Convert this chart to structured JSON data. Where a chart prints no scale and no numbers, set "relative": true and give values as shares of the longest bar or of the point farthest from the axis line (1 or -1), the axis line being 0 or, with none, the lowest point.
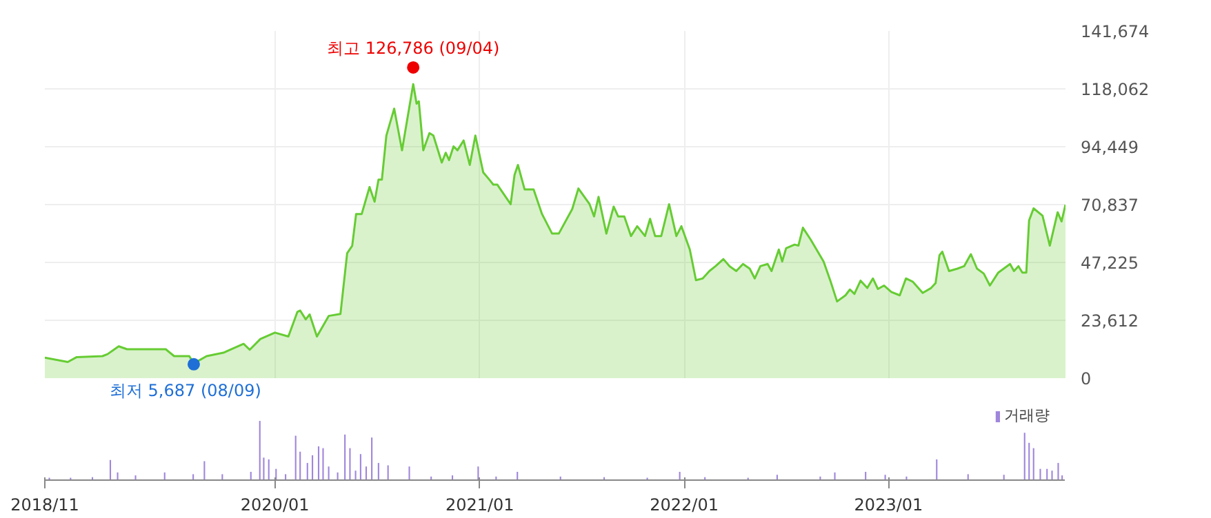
{
  "chart_data": [
    {
      "type": "area",
      "tick_labels": "y",
      "grid": true,
      "xlim": [
        "2018-11-16",
        "2023-11-13"
      ],
      "xticks": [
        {
          "value": "2018-11-16",
          "label": null
        },
        {
          "value": "2020-01-01",
          "label": null
        },
        {
          "value": "2021-01-01",
          "label": null
        },
        {
          "value": "2022-01-01",
          "label": null
        },
        {
          "value": "2023-01-01",
          "label": null
        }
      ],
      "ylim": [
        0,
        141674
      ],
      "yticks": [
        0,
        {
          "value": 23612,
          "label": "23,612"
        },
        {
          "value": 47225,
          "label": "47,225"
        },
        {
          "value": 70837,
          "label": "70,837"
        },
        {
          "value": 94449,
          "label": "94,449"
        },
        {
          "value": 118062,
          "label": "118,062"
        },
        {
          "value": 141674,
          "label": "141,674"
        }
      ],
      "annotations": [
        {
          "text": "최고 126,786 (09/04)",
          "x": "2020-09-04",
          "y": 126786
        },
        {
          "text": "최저 5,687 (08/09)",
          "x": "2019-08-09",
          "y": 5687
        }
      ],
      "series": [
        {
          "color": "#66cc33",
          "x": [
            "2018-11-16",
            "2018-12-27",
            "2019-01-12",
            "2019-02-27",
            "2019-03-08",
            "2019-03-28",
            "2019-04-12",
            "2019-05-08",
            "2019-06-20",
            "2019-07-05",
            "2019-08-01",
            "2019-08-09",
            "2019-09-01",
            "2019-10-01",
            "2019-11-06",
            "2019-11-17",
            "2019-12-06",
            "2020-01-01",
            "2020-01-25",
            "2020-02-10",
            "2020-02-15",
            "2020-02-25",
            "2020-03-03",
            "2020-03-16",
            "2020-04-06",
            "2020-04-27",
            "2020-05-09",
            "2020-05-18",
            "2020-05-25",
            "2020-06-04",
            "2020-06-18",
            "2020-06-27",
            "2020-07-04",
            "2020-07-10",
            "2020-07-18",
            "2020-08-01",
            "2020-08-15",
            "2020-09-04",
            "2020-09-10",
            "2020-09-14",
            "2020-09-22",
            "2020-10-03",
            "2020-10-10",
            "2020-10-25",
            "2020-11-01",
            "2020-11-07",
            "2020-11-15",
            "2020-11-22",
            "2020-12-03",
            "2020-12-14",
            "2020-12-24",
            "2021-01-07",
            "2021-01-18",
            "2021-01-25",
            "2021-02-01",
            "2021-02-25",
            "2021-03-04",
            "2021-03-10",
            "2021-03-22",
            "2021-04-07",
            "2021-04-22",
            "2021-05-10",
            "2021-05-22",
            "2021-06-15",
            "2021-06-26",
            "2021-07-16",
            "2021-07-24",
            "2021-08-01",
            "2021-08-15",
            "2021-08-28",
            "2021-09-05",
            "2021-09-16",
            "2021-09-28",
            "2021-10-09",
            "2021-10-23",
            "2021-11-01",
            "2021-11-10",
            "2021-11-21",
            "2021-12-05",
            "2021-12-18",
            "2021-12-27",
            "2022-01-11",
            "2022-01-22",
            "2022-02-03",
            "2022-02-15",
            "2022-02-26",
            "2022-03-12",
            "2022-03-23",
            "2022-04-04",
            "2022-04-16",
            "2022-04-28",
            "2022-05-07",
            "2022-05-17",
            "2022-05-30",
            "2022-06-06",
            "2022-06-19",
            "2022-06-25",
            "2022-07-02",
            "2022-07-17",
            "2022-07-24",
            "2022-08-01",
            "2022-08-15",
            "2022-09-07",
            "2022-09-19",
            "2022-10-01",
            "2022-10-16",
            "2022-10-24",
            "2022-11-01",
            "2022-11-12",
            "2022-11-24",
            "2022-12-04",
            "2022-12-13",
            "2022-12-24",
            "2023-01-06",
            "2023-01-21",
            "2023-02-01",
            "2023-02-13",
            "2023-03-03",
            "2023-03-18",
            "2023-03-26",
            "2023-04-02",
            "2023-04-07",
            "2023-04-19",
            "2023-05-04",
            "2023-05-16",
            "2023-05-28",
            "2023-06-08",
            "2023-06-20",
            "2023-07-01",
            "2023-07-16",
            "2023-08-06",
            "2023-08-13",
            "2023-08-21",
            "2023-08-28",
            "2023-09-04",
            "2023-09-09",
            "2023-09-17",
            "2023-10-03",
            "2023-10-16",
            "2023-10-30",
            "2023-11-06",
            "2023-11-13"
          ],
          "values": [
            8400,
            6600,
            8600,
            9000,
            9800,
            13000,
            11800,
            11800,
            11800,
            9000,
            9000,
            6000,
            9000,
            10400,
            14000,
            11600,
            16000,
            18600,
            17000,
            27000,
            27600,
            24000,
            26000,
            17000,
            25400,
            26200,
            51000,
            54000,
            67000,
            67000,
            78000,
            72000,
            81000,
            81000,
            99000,
            110000,
            93000,
            120000,
            112000,
            113000,
            93000,
            100000,
            99000,
            88000,
            92000,
            89000,
            94600,
            93000,
            97000,
            87000,
            99000,
            84000,
            81000,
            79000,
            79000,
            71000,
            83000,
            87000,
            77000,
            77000,
            67000,
            59000,
            59000,
            69000,
            77400,
            71000,
            66000,
            74000,
            59000,
            70000,
            66000,
            66000,
            58000,
            62000,
            58000,
            65000,
            58000,
            58000,
            71000,
            58000,
            62000,
            52500,
            40000,
            40700,
            43700,
            45700,
            48600,
            45700,
            43700,
            46600,
            44700,
            40700,
            45700,
            46600,
            43700,
            52500,
            47600,
            53000,
            54500,
            54100,
            61400,
            56500,
            47600,
            39800,
            31300,
            33800,
            36200,
            34400,
            39800,
            36800,
            40700,
            36400,
            37800,
            35200,
            33800,
            40700,
            39400,
            34800,
            36800,
            38800,
            50200,
            51600,
            43700,
            44700,
            45700,
            50600,
            44700,
            42700,
            37800,
            43100,
            46600,
            43700,
            45700,
            43100,
            43100,
            64400,
            69300,
            66300,
            54100,
            67700,
            64000,
            70800
          ]
        }
      ]
    },
    {
      "type": "bar",
      "relative": true,
      "tick_labels": "x",
      "legend": "top right",
      "xlim": [
        "2018-11-16",
        "2023-11-13"
      ],
      "xticks": [
        {
          "value": "2018-11-16",
          "label": "2018/11"
        },
        {
          "value": "2020-01-01",
          "label": "2020/01"
        },
        {
          "value": "2021-01-01",
          "label": "2021/01"
        },
        {
          "value": "2022-01-01",
          "label": "2022/01"
        },
        {
          "value": "2023-01-01",
          "label": "2023/01"
        }
      ],
      "series": [
        {
          "name": "거래량",
          "color": "#9f86dc",
          "x": [
            "2018-11-24",
            "2019-01-01",
            "2019-02-09",
            "2019-03-13",
            "2019-03-26",
            "2019-04-27",
            "2019-06-18",
            "2019-08-08",
            "2019-08-28",
            "2019-09-29",
            "2019-11-19",
            "2019-12-05",
            "2019-12-12",
            "2019-12-21",
            "2020-01-03",
            "2020-01-20",
            "2020-02-07",
            "2020-02-15",
            "2020-02-28",
            "2020-03-08",
            "2020-03-19",
            "2020-03-27",
            "2020-04-06",
            "2020-04-22",
            "2020-05-05",
            "2020-05-14",
            "2020-05-24",
            "2020-06-02",
            "2020-06-12",
            "2020-06-22",
            "2020-07-04",
            "2020-07-21",
            "2020-08-28",
            "2020-10-06",
            "2020-11-13",
            "2020-12-29",
            "2021-01-30",
            "2021-03-09",
            "2021-05-25",
            "2021-08-11",
            "2021-10-27",
            "2021-12-24",
            "2022-02-07",
            "2022-04-25",
            "2022-06-16",
            "2022-09-01",
            "2022-09-27",
            "2022-11-21",
            "2022-12-26",
            "2023-02-02",
            "2023-03-28",
            "2023-05-23",
            "2023-07-26",
            "2023-09-01",
            "2023-09-09",
            "2023-09-17",
            "2023-09-29",
            "2023-10-11",
            "2023-10-20",
            "2023-10-31",
            "2023-11-07"
          ],
          "values": [
            0.04,
            0.04,
            0.05,
            0.34,
            0.13,
            0.08,
            0.13,
            0.1,
            0.32,
            0.1,
            0.14,
            1.0,
            0.38,
            0.35,
            0.19,
            0.1,
            0.75,
            0.48,
            0.29,
            0.42,
            0.57,
            0.54,
            0.23,
            0.13,
            0.77,
            0.54,
            0.16,
            0.44,
            0.23,
            0.72,
            0.29,
            0.25,
            0.23,
            0.06,
            0.08,
            0.23,
            0.06,
            0.14,
            0.06,
            0.05,
            0.04,
            0.14,
            0.05,
            0.04,
            0.09,
            0.06,
            0.13,
            0.14,
            0.09,
            0.06,
            0.35,
            0.1,
            0.09,
            0.8,
            0.63,
            0.54,
            0.19,
            0.19,
            0.16,
            0.29,
            0.08
          ]
        }
      ]
    }
  ]
}
